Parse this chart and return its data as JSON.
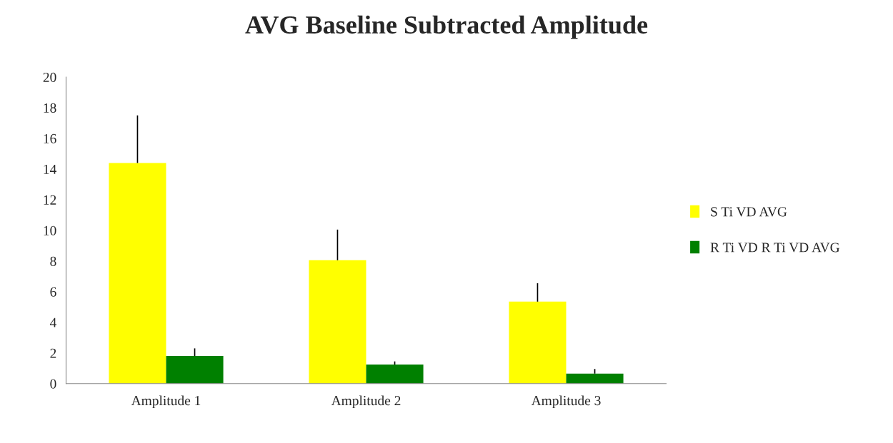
{
  "chart_data": {
    "type": "bar",
    "title": "AVG Baseline Subtracted Amplitude",
    "categories": [
      "Amplitude 1",
      "Amplitude 2",
      "Amplitude 3"
    ],
    "series": [
      {
        "name": "S Ti VD AVG",
        "color": "#ffff00",
        "values": [
          14.4,
          8.05,
          5.35
        ],
        "errors": [
          [
            14.4,
            17.5
          ],
          [
            8.05,
            10.05
          ],
          [
            5.35,
            6.55
          ]
        ]
      },
      {
        "name": "R Ti VD R Ti VD AVG",
        "color": "#008000",
        "values": [
          1.8,
          1.25,
          0.65
        ],
        "errors": [
          [
            1.8,
            2.3
          ],
          [
            1.25,
            1.45
          ],
          [
            0.65,
            0.95
          ]
        ]
      }
    ],
    "ylim": [
      0,
      20
    ],
    "yticks": [
      0,
      2,
      4,
      6,
      8,
      10,
      12,
      14,
      16,
      18,
      20
    ],
    "grid": false,
    "legend": "right"
  }
}
